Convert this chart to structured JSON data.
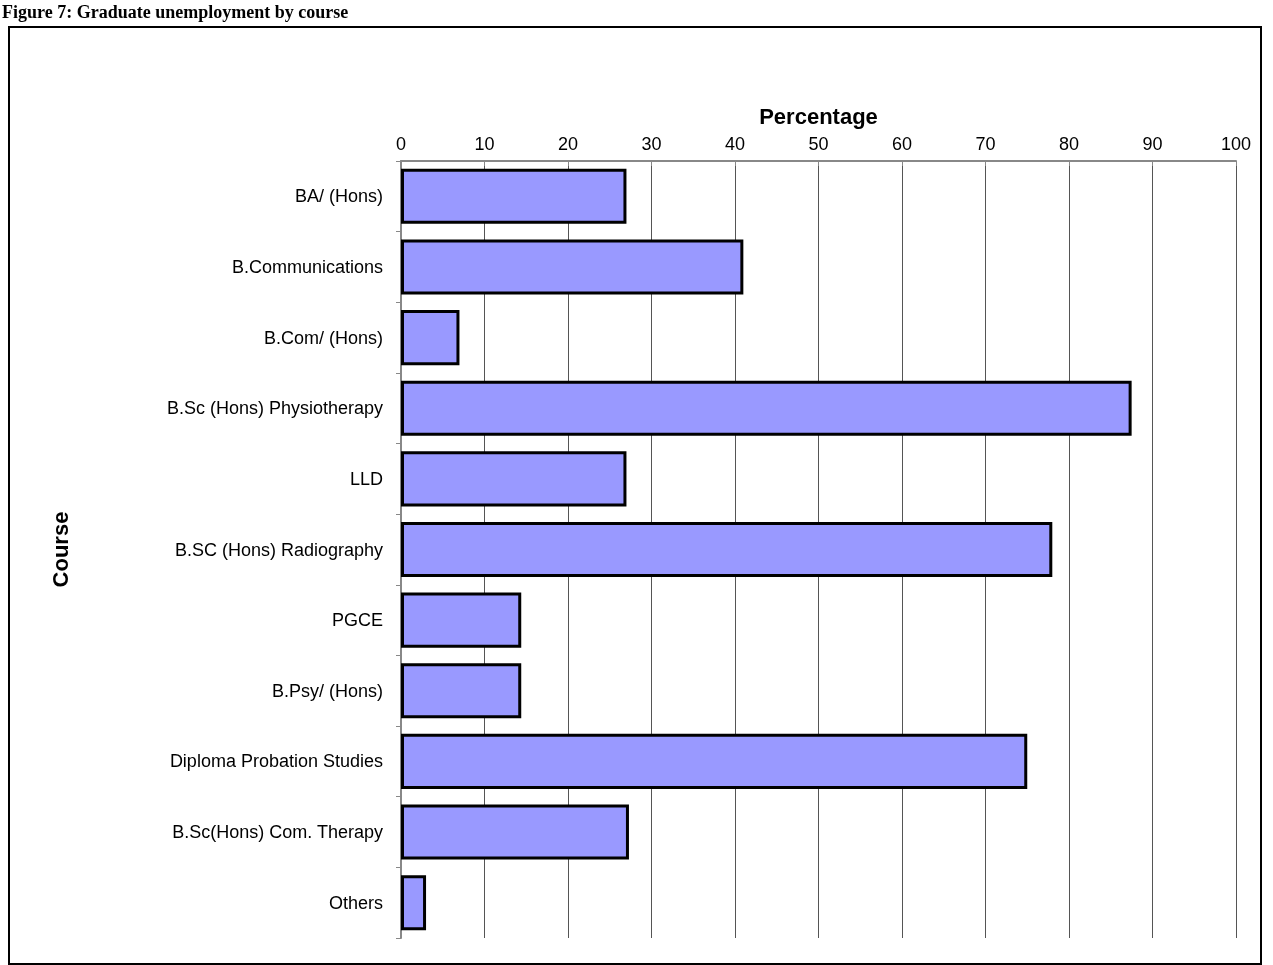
{
  "chart_data": {
    "type": "bar",
    "orientation": "horizontal",
    "title": "Figure 7: Graduate unemployment by course",
    "xlabel": "Percentage",
    "ylabel": "Course",
    "categories": [
      "BA/ (Hons)",
      "B.Communications",
      "B.Com/ (Hons)",
      "B.Sc (Hons) Physiotherapy",
      "LLD",
      "B.SC (Hons) Radiography",
      "PGCE",
      "B.Psy/ (Hons)",
      "Diploma Probation Studies",
      "B.Sc(Hons) Com. Therapy",
      "Others"
    ],
    "values": [
      27,
      41,
      7,
      87.5,
      27,
      78,
      14.4,
      14.4,
      75,
      27.3,
      3
    ],
    "color": "#9999ff",
    "xlim": [
      0,
      100
    ],
    "xticks": [
      0,
      10,
      20,
      30,
      40,
      50,
      60,
      70,
      80,
      90,
      100
    ],
    "grid": "x"
  }
}
